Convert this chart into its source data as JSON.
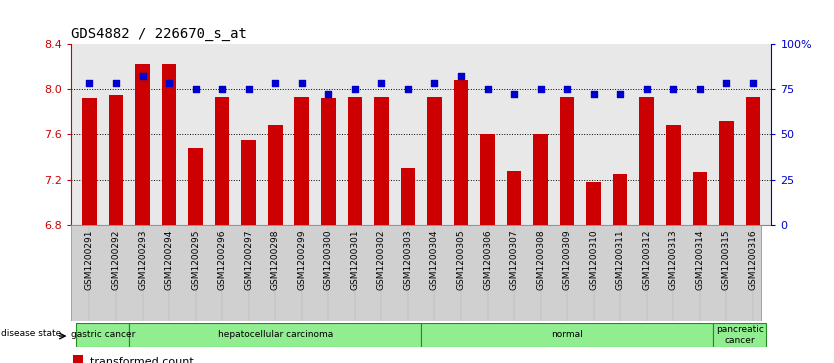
{
  "title": "GDS4882 / 226670_s_at",
  "samples": [
    "GSM1200291",
    "GSM1200292",
    "GSM1200293",
    "GSM1200294",
    "GSM1200295",
    "GSM1200296",
    "GSM1200297",
    "GSM1200298",
    "GSM1200299",
    "GSM1200300",
    "GSM1200301",
    "GSM1200302",
    "GSM1200303",
    "GSM1200304",
    "GSM1200305",
    "GSM1200306",
    "GSM1200307",
    "GSM1200308",
    "GSM1200309",
    "GSM1200310",
    "GSM1200311",
    "GSM1200312",
    "GSM1200313",
    "GSM1200314",
    "GSM1200315",
    "GSM1200316"
  ],
  "transformed_count": [
    7.92,
    7.95,
    8.22,
    8.22,
    7.48,
    7.93,
    7.55,
    7.68,
    7.93,
    7.92,
    7.93,
    7.93,
    7.3,
    7.93,
    8.08,
    7.6,
    7.28,
    7.6,
    7.93,
    7.18,
    7.25,
    7.93,
    7.68,
    7.27,
    7.72,
    7.93
  ],
  "percentile_rank": [
    78,
    78,
    82,
    78,
    75,
    75,
    75,
    78,
    78,
    72,
    75,
    78,
    75,
    78,
    82,
    75,
    72,
    75,
    75,
    72,
    72,
    75,
    75,
    75,
    78,
    78
  ],
  "group_spans": [
    {
      "label": "gastric cancer",
      "start": 0,
      "end": 2
    },
    {
      "label": "hepatocellular carcinoma",
      "start": 2,
      "end": 13
    },
    {
      "label": "normal",
      "start": 13,
      "end": 24
    },
    {
      "label": "pancreatic\ncancer",
      "start": 24,
      "end": 26
    }
  ],
  "ylim_left": [
    6.8,
    8.4
  ],
  "ylim_right": [
    0,
    100
  ],
  "bar_color": "#cc0000",
  "scatter_color": "#0000cc",
  "bg_color": "#e8e8e8",
  "dotted_line_color": "#000000",
  "title_fontsize": 10,
  "tick_fontsize": 6.5,
  "green_light": "#90EE90",
  "green_dark": "#228B22"
}
